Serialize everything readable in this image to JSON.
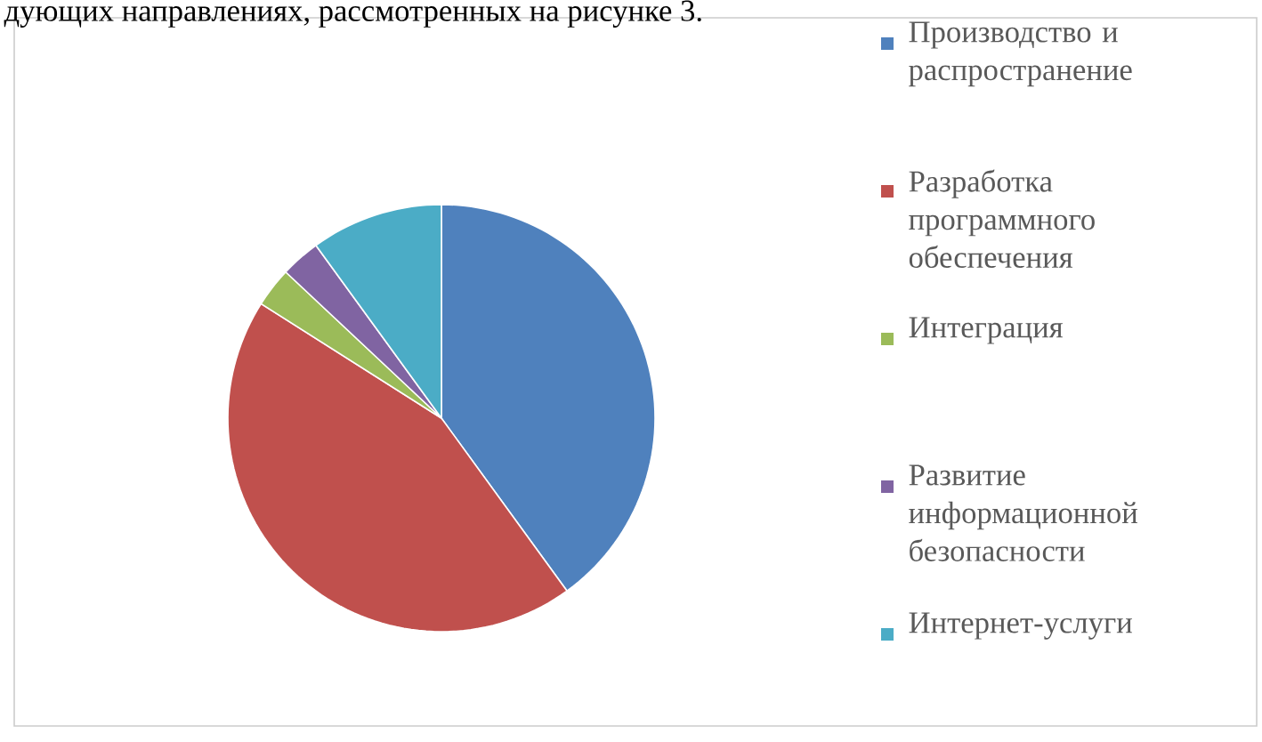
{
  "chart_data": {
    "type": "pie",
    "categories": [
      "Производство и распространение",
      "Разработка программного обеспечения",
      "Интеграция",
      "Развитие информационной безопасности",
      "Интернет-услуги"
    ],
    "values": [
      40,
      44,
      3,
      3,
      10
    ],
    "colors": [
      "#4f81bd",
      "#c0504d",
      "#9bbb59",
      "#8064a2",
      "#4bacc6"
    ],
    "legend": "right",
    "annotations": [
      "дующих направлениях, рассмотренных на рисунке 3."
    ]
  }
}
